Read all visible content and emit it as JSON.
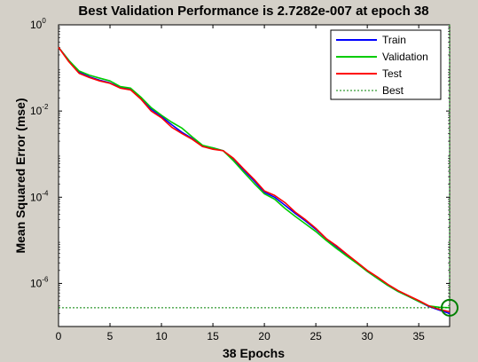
{
  "chart_data": {
    "type": "line",
    "title": "Best Validation Performance is 2.7282e-007 at epoch 38",
    "xlabel": "38 Epochs",
    "ylabel": "Mean Squared Error  (mse)",
    "xlim": [
      0,
      38
    ],
    "ylim": [
      1e-07,
      1
    ],
    "yscale": "log",
    "grid": false,
    "legend_position": "top-right",
    "x_ticks": [
      0,
      5,
      10,
      15,
      20,
      25,
      30,
      35
    ],
    "y_ticks": [
      {
        "base": "10",
        "exp": "0"
      },
      {
        "base": "10",
        "exp": "-2"
      },
      {
        "base": "10",
        "exp": "-4"
      },
      {
        "base": "10",
        "exp": "-6"
      }
    ],
    "x": [
      0,
      1,
      2,
      3,
      4,
      5,
      6,
      7,
      8,
      9,
      10,
      11,
      12,
      13,
      14,
      15,
      16,
      17,
      18,
      19,
      20,
      21,
      22,
      23,
      24,
      25,
      26,
      27,
      28,
      29,
      30,
      31,
      32,
      33,
      34,
      35,
      36,
      37,
      38
    ],
    "series": [
      {
        "name": "Train",
        "color": "#0000ff",
        "style": "solid",
        "values": [
          0.3,
          0.15,
          0.08,
          0.062,
          0.052,
          0.045,
          0.035,
          0.032,
          0.02,
          0.011,
          0.0075,
          0.0048,
          0.0032,
          0.0023,
          0.0015,
          0.0014,
          0.0012,
          0.00075,
          0.00042,
          0.00024,
          0.00013,
          0.0001,
          6.5e-05,
          4.2e-05,
          2.8e-05,
          1.8e-05,
          1.1e-05,
          7e-06,
          4.5e-06,
          3e-06,
          1.9e-06,
          1.3e-06,
          9e-07,
          6.5e-07,
          5e-07,
          3.8e-07,
          2.9e-07,
          2.4e-07,
          2e-07
        ]
      },
      {
        "name": "Validation",
        "color": "#00cc00",
        "style": "solid",
        "values": [
          0.3,
          0.15,
          0.085,
          0.068,
          0.058,
          0.05,
          0.037,
          0.034,
          0.021,
          0.012,
          0.008,
          0.0055,
          0.004,
          0.0025,
          0.0016,
          0.0014,
          0.0012,
          0.0007,
          0.00038,
          0.00021,
          0.00012,
          9e-05,
          5.5e-05,
          3.6e-05,
          2.4e-05,
          1.6e-05,
          1e-05,
          6.5e-06,
          4.3e-06,
          2.9e-06,
          1.9e-06,
          1.3e-06,
          9e-07,
          6.5e-07,
          5e-07,
          3.8e-07,
          3e-07,
          2.8e-07,
          2.7282e-07
        ]
      },
      {
        "name": "Test",
        "color": "#ff0000",
        "style": "solid",
        "values": [
          0.3,
          0.14,
          0.075,
          0.06,
          0.05,
          0.044,
          0.034,
          0.031,
          0.019,
          0.01,
          0.007,
          0.0042,
          0.003,
          0.0022,
          0.0015,
          0.0013,
          0.0012,
          0.0008,
          0.00045,
          0.00026,
          0.00014,
          0.00011,
          7.5e-05,
          4.5e-05,
          3e-05,
          1.9e-05,
          1.1e-05,
          7.5e-06,
          4.8e-06,
          3.1e-06,
          2e-06,
          1.4e-06,
          9.5e-07,
          6.8e-07,
          5.2e-07,
          4e-07,
          3e-07,
          2.5e-07,
          2.2e-07
        ]
      },
      {
        "name": "Best",
        "color": "#008000",
        "style": "dotted",
        "best_epoch": 38,
        "best_value": 2.7282e-07
      }
    ]
  }
}
